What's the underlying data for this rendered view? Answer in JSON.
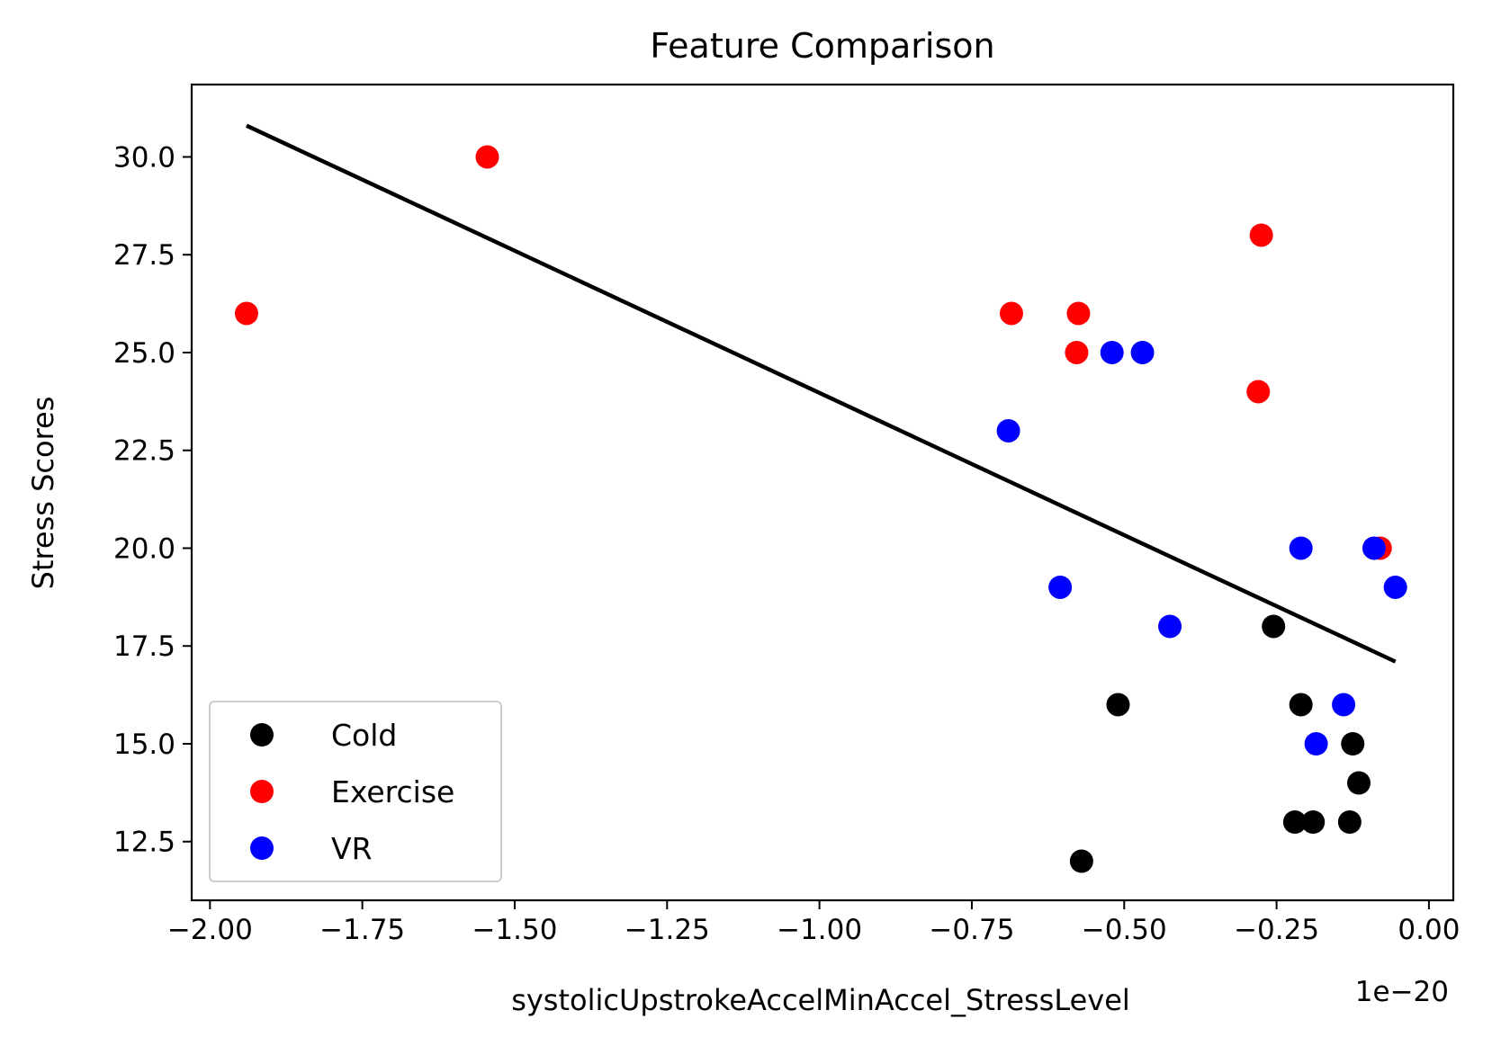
{
  "chart_data": {
    "type": "scatter",
    "title": "Feature Comparison",
    "xlabel": "systolicUpstrokeAccelMinAccel_StressLevel",
    "ylabel": "Stress Scores",
    "x_offset_label": "1e−20",
    "x_scale_note": "x values shown in units of 1e-20",
    "xlim": [
      -2.03,
      0.04
    ],
    "ylim": [
      11.0,
      31.85
    ],
    "x_ticks": [
      -2.0,
      -1.75,
      -1.5,
      -1.25,
      -1.0,
      -0.75,
      -0.5,
      -0.25,
      0.0
    ],
    "x_tick_labels": [
      "−2.00",
      "−1.75",
      "−1.50",
      "−1.25",
      "−1.00",
      "−0.75",
      "−0.50",
      "−0.25",
      "0.00"
    ],
    "y_ticks": [
      12.5,
      15.0,
      17.5,
      20.0,
      22.5,
      25.0,
      27.5,
      30.0
    ],
    "y_tick_labels": [
      "12.5",
      "15.0",
      "17.5",
      "20.0",
      "22.5",
      "25.0",
      "27.5",
      "30.0"
    ],
    "grid": false,
    "legend_position": "lower-left",
    "series": [
      {
        "name": "Cold",
        "color": "#000000",
        "points": [
          {
            "x": -0.57,
            "y": 12
          },
          {
            "x": -0.51,
            "y": 16
          },
          {
            "x": -0.255,
            "y": 18
          },
          {
            "x": -0.21,
            "y": 16
          },
          {
            "x": -0.22,
            "y": 13
          },
          {
            "x": -0.19,
            "y": 13
          },
          {
            "x": -0.125,
            "y": 15
          },
          {
            "x": -0.115,
            "y": 14
          },
          {
            "x": -0.13,
            "y": 13
          }
        ]
      },
      {
        "name": "Exercise",
        "color": "#ff0000",
        "points": [
          {
            "x": -1.94,
            "y": 26
          },
          {
            "x": -1.545,
            "y": 30
          },
          {
            "x": -0.685,
            "y": 26
          },
          {
            "x": -0.575,
            "y": 26
          },
          {
            "x": -0.578,
            "y": 25
          },
          {
            "x": -0.275,
            "y": 28
          },
          {
            "x": -0.28,
            "y": 24
          },
          {
            "x": -0.08,
            "y": 20
          }
        ]
      },
      {
        "name": "VR",
        "color": "#0000ff",
        "points": [
          {
            "x": -0.69,
            "y": 23
          },
          {
            "x": -0.52,
            "y": 25
          },
          {
            "x": -0.47,
            "y": 25
          },
          {
            "x": -0.605,
            "y": 19
          },
          {
            "x": -0.425,
            "y": 18
          },
          {
            "x": -0.21,
            "y": 20
          },
          {
            "x": -0.09,
            "y": 20
          },
          {
            "x": -0.055,
            "y": 19
          },
          {
            "x": -0.14,
            "y": 16
          },
          {
            "x": -0.185,
            "y": 15
          }
        ]
      }
    ],
    "trend_line": {
      "color": "#000000",
      "points": [
        {
          "x": -1.94,
          "y": 30.8
        },
        {
          "x": -0.055,
          "y": 17.1
        }
      ]
    }
  }
}
